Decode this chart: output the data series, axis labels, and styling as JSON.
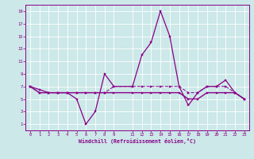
{
  "xlabel": "Windchill (Refroidissement éolien,°C)",
  "bg_color": "#cce8e8",
  "line_color": "#880088",
  "xlim": [
    -0.5,
    23.5
  ],
  "ylim": [
    0,
    20
  ],
  "xticks": [
    0,
    1,
    2,
    3,
    4,
    5,
    6,
    7,
    8,
    9,
    11,
    12,
    13,
    14,
    15,
    16,
    17,
    18,
    19,
    20,
    21,
    22,
    23
  ],
  "yticks": [
    1,
    3,
    5,
    7,
    9,
    11,
    13,
    15,
    17,
    19
  ],
  "line1_x": [
    0,
    1,
    2,
    3,
    4,
    5,
    6,
    7,
    8,
    9,
    11,
    12,
    13,
    14,
    15,
    16,
    17,
    18,
    19,
    20,
    21,
    22,
    23
  ],
  "line1_y": [
    7,
    6.5,
    6,
    6,
    6,
    5,
    1,
    3,
    9,
    7,
    7,
    12,
    14,
    19,
    15,
    7,
    4,
    6,
    7,
    7,
    8,
    6,
    5
  ],
  "line2_x": [
    0,
    1,
    2,
    3,
    4,
    5,
    6,
    7,
    8,
    9,
    11,
    12,
    13,
    14,
    15,
    16,
    17,
    18,
    19,
    20,
    21,
    22,
    23
  ],
  "line2_y": [
    7,
    6,
    6,
    6,
    6,
    6,
    6,
    6,
    6,
    6,
    6,
    6,
    6,
    6,
    6,
    6,
    5,
    5,
    6,
    6,
    6,
    6,
    5
  ],
  "line3_x": [
    0,
    1,
    2,
    3,
    4,
    5,
    6,
    7,
    8,
    9,
    11,
    12,
    13,
    14,
    15,
    16,
    17,
    18,
    19,
    20,
    21,
    22,
    23
  ],
  "line3_y": [
    7,
    6,
    6,
    6,
    6,
    6,
    6,
    6,
    6,
    7,
    7,
    7,
    7,
    7,
    7,
    7,
    6,
    6,
    7,
    7,
    7,
    6,
    5
  ],
  "grid_color": "#aadddd",
  "tick_fontsize": 4.0,
  "xlabel_fontsize": 4.8
}
